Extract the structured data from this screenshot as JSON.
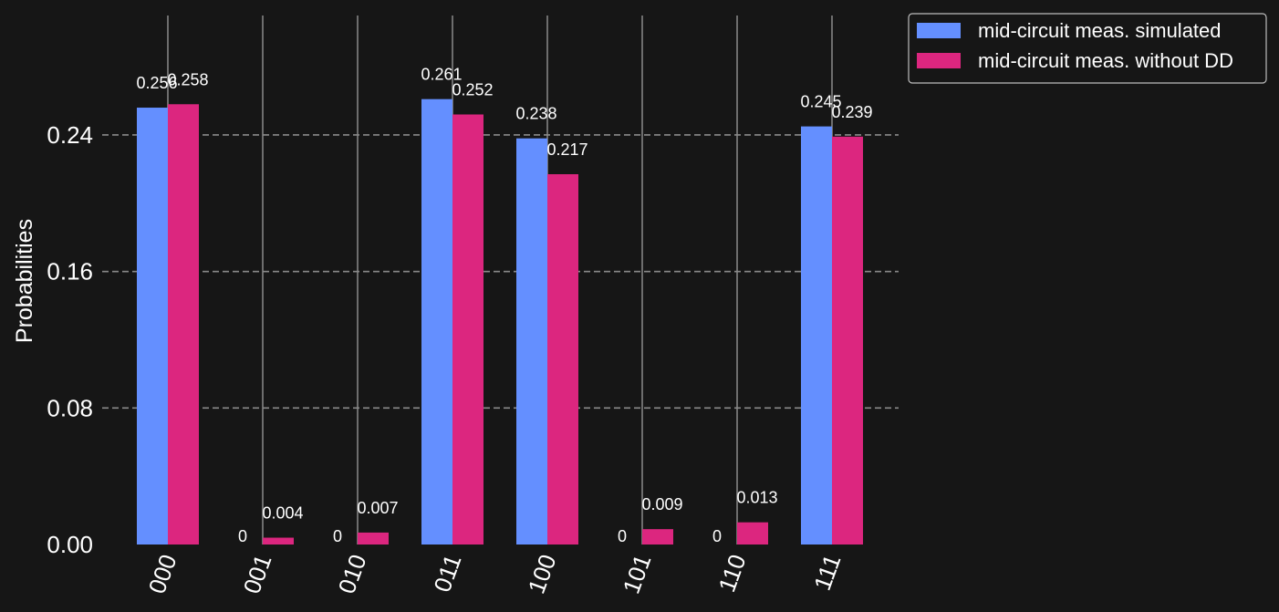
{
  "chart_data": {
    "type": "bar",
    "title": "",
    "xlabel": "",
    "ylabel": "Probabilities",
    "ylim": [
      0,
      0.3
    ],
    "yticks": [
      0.0,
      0.08,
      0.16,
      0.24
    ],
    "ytick_labels": [
      "0.00",
      "0.08",
      "0.16",
      "0.24"
    ],
    "categories": [
      "000",
      "001",
      "010",
      "011",
      "100",
      "101",
      "110",
      "111"
    ],
    "grid": {
      "horizontal": "dashed",
      "vertical": "solid"
    },
    "legend_position": "outside-top-right",
    "series": [
      {
        "name": "mid-circuit meas. simulated",
        "color": "#648fff",
        "values": [
          0.256,
          0,
          0,
          0.261,
          0.238,
          0,
          0,
          0.245
        ],
        "labels": [
          "0.256",
          "0",
          "0",
          "0.261",
          "0.238",
          "0",
          "0",
          "0.245"
        ]
      },
      {
        "name": "mid-circuit meas. without DD",
        "color": "#dc267f",
        "values": [
          0.258,
          0.004,
          0.007,
          0.252,
          0.217,
          0.009,
          0.013,
          0.239
        ],
        "labels": [
          "0.258",
          "0.004",
          "0.007",
          "0.252",
          "0.217",
          "0.009",
          "0.013",
          "0.239"
        ]
      }
    ]
  },
  "colors": {
    "background": "#161616",
    "grid": "#8a8a8a",
    "text": "#ffffff"
  }
}
